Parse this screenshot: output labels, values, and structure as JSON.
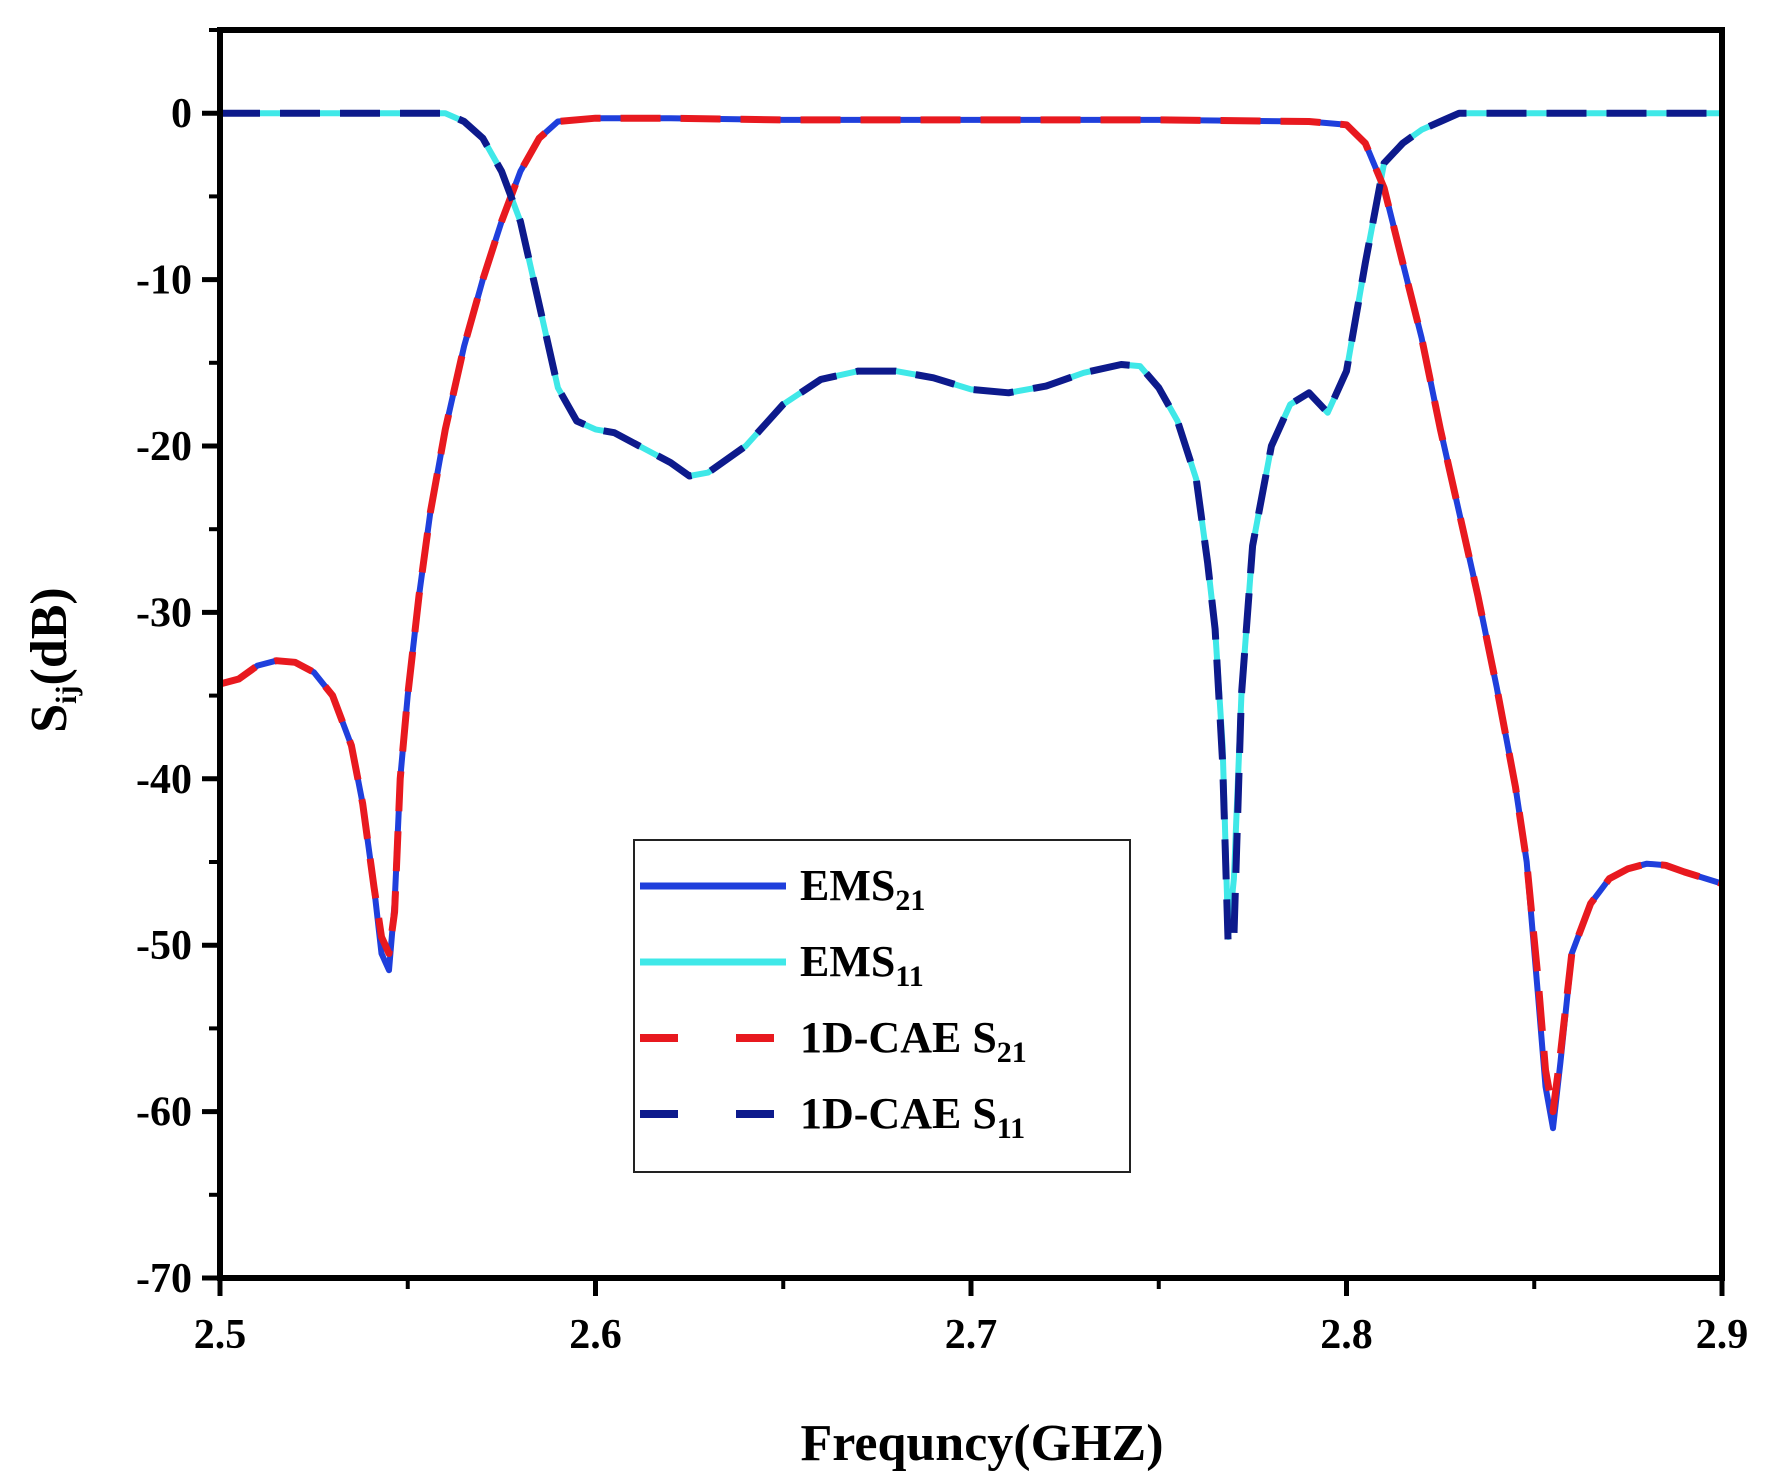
{
  "chart_data": {
    "type": "line",
    "title": "",
    "xlabel": "Frequncy(GHZ)",
    "ylabel": {
      "main": "S",
      "sub": "ij",
      "rest": "(dB)"
    },
    "xlim": [
      2.5,
      2.9
    ],
    "ylim": [
      -70,
      5
    ],
    "xticks": [
      2.5,
      2.6,
      2.7,
      2.8,
      2.9
    ],
    "xtick_labels": [
      "2.5",
      "2.6",
      "2.7",
      "2.8",
      "2.9"
    ],
    "yticks": [
      0,
      -10,
      -20,
      -30,
      -40,
      -50,
      -60,
      -70
    ],
    "ytick_labels": [
      "0",
      "-10",
      "-20",
      "-30",
      "-40",
      "-50",
      "-60",
      "-70"
    ],
    "grid": false,
    "legend_position": "bottom-center",
    "series": [
      {
        "name": "EMS21",
        "label_main": "EMS",
        "label_sub": "21",
        "color": "#1f3fdc",
        "style": "solid",
        "x": [
          2.5,
          2.505,
          2.51,
          2.515,
          2.52,
          2.525,
          2.53,
          2.535,
          2.538,
          2.541,
          2.543,
          2.545,
          2.5465,
          2.548,
          2.55,
          2.553,
          2.556,
          2.56,
          2.565,
          2.57,
          2.575,
          2.58,
          2.585,
          2.59,
          2.6,
          2.62,
          2.65,
          2.7,
          2.75,
          2.79,
          2.8,
          2.805,
          2.81,
          2.815,
          2.82,
          2.825,
          2.83,
          2.835,
          2.84,
          2.845,
          2.848,
          2.851,
          2.853,
          2.855,
          2.857,
          2.86,
          2.865,
          2.87,
          2.875,
          2.88,
          2.885,
          2.89,
          2.9
        ],
        "y": [
          -34.3,
          -34,
          -33.2,
          -32.9,
          -33,
          -33.6,
          -35,
          -38,
          -41.5,
          -46.5,
          -50.5,
          -51.5,
          -47.5,
          -40,
          -35,
          -29,
          -24,
          -19,
          -14,
          -10,
          -6.5,
          -3.5,
          -1.5,
          -0.5,
          -0.3,
          -0.3,
          -0.4,
          -0.4,
          -0.4,
          -0.5,
          -0.7,
          -1.8,
          -4.5,
          -9,
          -13.5,
          -19,
          -24,
          -29,
          -34.5,
          -40.5,
          -45,
          -53,
          -58.5,
          -61,
          -57,
          -50.5,
          -47.5,
          -46,
          -45.4,
          -45.1,
          -45.2,
          -45.6,
          -46.3
        ]
      },
      {
        "name": "EMS11",
        "label_main": "EMS",
        "label_sub": "11",
        "color": "#3fe8e8",
        "style": "solid",
        "x": [
          2.5,
          2.52,
          2.54,
          2.56,
          2.565,
          2.57,
          2.575,
          2.58,
          2.585,
          2.59,
          2.595,
          2.6,
          2.605,
          2.61,
          2.62,
          2.625,
          2.63,
          2.64,
          2.65,
          2.66,
          2.67,
          2.68,
          2.69,
          2.7,
          2.71,
          2.72,
          2.73,
          2.74,
          2.745,
          2.75,
          2.755,
          2.76,
          2.763,
          2.765,
          2.767,
          2.7685,
          2.77,
          2.772,
          2.775,
          2.78,
          2.785,
          2.79,
          2.795,
          2.8,
          2.805,
          2.81,
          2.815,
          2.82,
          2.825,
          2.83,
          2.85,
          2.9
        ],
        "y": [
          0,
          0,
          0,
          0,
          -0.5,
          -1.5,
          -3.5,
          -6.5,
          -11.5,
          -16.5,
          -18.5,
          -19,
          -19.2,
          -19.8,
          -21,
          -21.8,
          -21.6,
          -20,
          -17.5,
          -16,
          -15.5,
          -15.5,
          -15.9,
          -16.6,
          -16.8,
          -16.4,
          -15.6,
          -15.1,
          -15.2,
          -16.5,
          -18.5,
          -22,
          -27,
          -31,
          -38,
          -49.5,
          -46,
          -35,
          -26,
          -20,
          -17.5,
          -16.8,
          -18,
          -15.5,
          -9,
          -3,
          -1.8,
          -1,
          -0.5,
          0,
          0,
          0
        ]
      },
      {
        "name": "1D-CAE S21",
        "label_main": "1D-CAE S",
        "label_sub": "21",
        "color": "#e8191f",
        "style": "dashed",
        "x": [
          2.5,
          2.505,
          2.51,
          2.515,
          2.52,
          2.525,
          2.53,
          2.535,
          2.538,
          2.541,
          2.543,
          2.545,
          2.5465,
          2.548,
          2.55,
          2.553,
          2.556,
          2.56,
          2.565,
          2.57,
          2.575,
          2.58,
          2.585,
          2.59,
          2.6,
          2.62,
          2.65,
          2.7,
          2.75,
          2.79,
          2.8,
          2.805,
          2.81,
          2.815,
          2.82,
          2.825,
          2.83,
          2.835,
          2.84,
          2.845,
          2.848,
          2.851,
          2.853,
          2.855,
          2.857,
          2.86,
          2.865,
          2.87,
          2.875,
          2.88,
          2.885,
          2.89,
          2.9
        ],
        "y": [
          -34.3,
          -34,
          -33.2,
          -32.9,
          -33,
          -33.6,
          -35,
          -38,
          -41.5,
          -46.5,
          -49.5,
          -50.5,
          -48,
          -40,
          -35,
          -29,
          -24,
          -19,
          -14,
          -10,
          -6.5,
          -3.5,
          -1.5,
          -0.5,
          -0.3,
          -0.3,
          -0.4,
          -0.4,
          -0.4,
          -0.5,
          -0.7,
          -1.8,
          -4.5,
          -9,
          -13.5,
          -19,
          -24,
          -29,
          -34.5,
          -40.5,
          -45,
          -52,
          -57.5,
          -60,
          -56.5,
          -50.5,
          -47.5,
          -46,
          -45.4,
          -45.1,
          -45.2,
          -45.6,
          -46.3
        ]
      },
      {
        "name": "1D-CAE S11",
        "label_main": "1D-CAE S",
        "label_sub": "11",
        "color": "#0d1a8c",
        "style": "dashed",
        "x": [
          2.5,
          2.52,
          2.54,
          2.56,
          2.565,
          2.57,
          2.575,
          2.58,
          2.585,
          2.59,
          2.595,
          2.6,
          2.605,
          2.61,
          2.62,
          2.625,
          2.63,
          2.64,
          2.65,
          2.66,
          2.67,
          2.68,
          2.69,
          2.7,
          2.71,
          2.72,
          2.73,
          2.74,
          2.745,
          2.75,
          2.755,
          2.76,
          2.763,
          2.765,
          2.767,
          2.7685,
          2.77,
          2.772,
          2.775,
          2.78,
          2.785,
          2.79,
          2.795,
          2.8,
          2.805,
          2.81,
          2.815,
          2.82,
          2.825,
          2.83,
          2.85,
          2.9
        ],
        "y": [
          0,
          0,
          0,
          0,
          -0.5,
          -1.5,
          -3.5,
          -6.5,
          -11.5,
          -16.5,
          -18.5,
          -19,
          -19.2,
          -19.8,
          -21,
          -21.8,
          -21.6,
          -20,
          -17.5,
          -16,
          -15.5,
          -15.5,
          -15.9,
          -16.6,
          -16.8,
          -16.4,
          -15.6,
          -15.1,
          -15.2,
          -16.5,
          -18.5,
          -22,
          -27,
          -31,
          -39,
          -50,
          -49.5,
          -35,
          -26,
          -20,
          -17.5,
          -16.8,
          -18,
          -15.5,
          -9,
          -3,
          -1.8,
          -1,
          -0.5,
          0,
          0,
          0
        ]
      }
    ]
  }
}
